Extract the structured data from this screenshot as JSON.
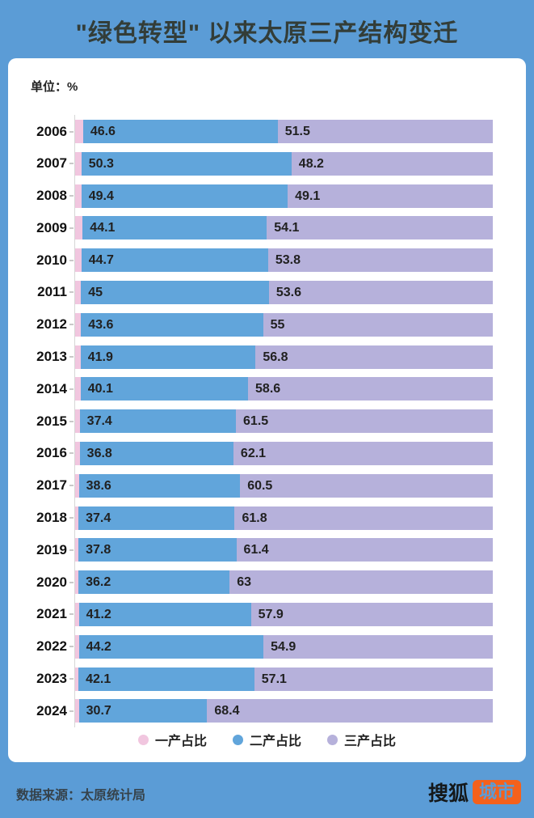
{
  "title": "\"绿色转型\" 以来太原三产结构变迁",
  "unit_label": "单位：%",
  "chart_data": {
    "type": "bar",
    "orientation": "horizontal",
    "stacked": true,
    "title": "\"绿色转型\" 以来太原三产结构变迁",
    "unit": "%",
    "xlim": [
      0,
      100
    ],
    "legend_position": "bottom",
    "grid": false,
    "categories": [
      "2006",
      "2007",
      "2008",
      "2009",
      "2010",
      "2011",
      "2012",
      "2013",
      "2014",
      "2015",
      "2016",
      "2017",
      "2018",
      "2019",
      "2020",
      "2021",
      "2022",
      "2023",
      "2024"
    ],
    "series": [
      {
        "name": "一产占比",
        "key": "primary",
        "color": "#F1C6DF",
        "labels_visible": false,
        "values": [
          1.9,
          1.5,
          1.5,
          1.8,
          1.5,
          1.4,
          1.4,
          1.3,
          1.3,
          1.1,
          1.1,
          0.9,
          0.8,
          0.8,
          0.8,
          0.9,
          0.9,
          0.8,
          0.9
        ]
      },
      {
        "name": "二产占比",
        "key": "secondary",
        "color": "#61A5DB",
        "labels_visible": true,
        "values": [
          46.6,
          50.3,
          49.4,
          44.1,
          44.7,
          45,
          43.6,
          41.9,
          40.1,
          37.4,
          36.8,
          38.6,
          37.4,
          37.8,
          36.2,
          41.2,
          44.2,
          42.1,
          30.7
        ]
      },
      {
        "name": "三产占比",
        "key": "tertiary",
        "color": "#B6B1DB",
        "labels_visible": true,
        "values": [
          51.5,
          48.2,
          49.1,
          54.1,
          53.8,
          53.6,
          55,
          56.8,
          58.6,
          61.5,
          62.1,
          60.5,
          61.8,
          61.4,
          63,
          57.9,
          54.9,
          57.1,
          68.4
        ]
      }
    ]
  },
  "footer": {
    "source": "数据来源：太原统计局",
    "logo_text_left": "搜狐",
    "logo_text_right": "城市"
  },
  "colors": {
    "background": "#5B9CD6",
    "card": "#FFFFFF",
    "primary_pink": "#F1C6DF",
    "secondary_blue": "#61A5DB",
    "tertiary_purple": "#B6B1DB",
    "logo_accent": "#F4611C",
    "title_text": "#333D38"
  }
}
